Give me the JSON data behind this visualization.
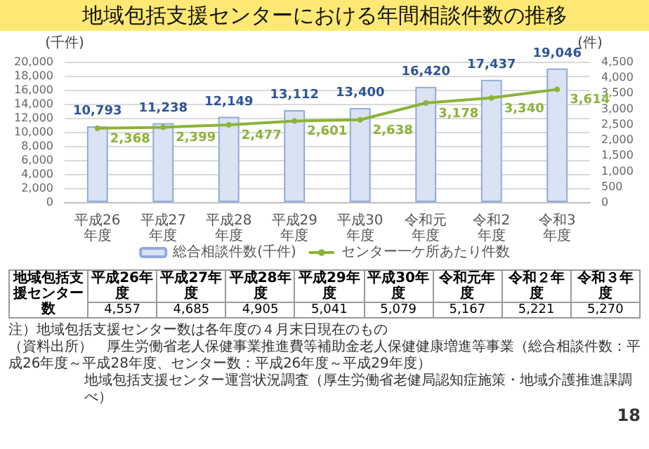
{
  "chart_data": [
    {
      "type": "bar",
      "title": "地域包括支援センターにおける年間相談件数の推移",
      "categories": [
        "平成26年度",
        "平成27年度",
        "平成28年度",
        "平成29年度",
        "平成30年度",
        "令和元年度",
        "令和2年度",
        "令和3年度"
      ],
      "series": [
        {
          "name": "総合相談件数(千件)",
          "type": "bar",
          "color": "#dae3f3",
          "values": [
            10793,
            11238,
            12149,
            13112,
            13400,
            16420,
            17437,
            19046
          ],
          "value_labels": [
            "10,793",
            "11,238",
            "12,149",
            "13,112",
            "13,400",
            "16,420",
            "17,437",
            "19,046"
          ]
        },
        {
          "name": "センター一ケ所あたり件数",
          "type": "line",
          "axis": "y2",
          "color": "#8cb33a",
          "marker": "circle",
          "values": [
            2368,
            2399,
            2477,
            2601,
            2638,
            3178,
            3340,
            3614
          ],
          "value_labels": [
            "2,368",
            "2,399",
            "2,477",
            "2,601",
            "2,638",
            "3,178",
            "3,340",
            "3,614"
          ]
        }
      ],
      "ylabel": "(千件)",
      "y2label": "(件)",
      "ylim": [
        0,
        20000
      ],
      "yticks": [
        0,
        {
          "value": 2000,
          "label": "2,000"
        },
        {
          "value": 4000,
          "label": "4,000"
        },
        {
          "value": 6000,
          "label": "6,000"
        },
        {
          "value": 8000,
          "label": "8,000"
        },
        {
          "value": 10000,
          "label": "10,000"
        },
        {
          "value": 12000,
          "label": "12,000"
        },
        {
          "value": 14000,
          "label": "14,000"
        },
        {
          "value": 16000,
          "label": "16,000"
        },
        {
          "value": 18000,
          "label": "18,000"
        },
        {
          "value": 20000,
          "label": "20,000"
        }
      ],
      "y2lim": [
        0,
        4500
      ],
      "y2ticks": [
        0,
        500,
        {
          "value": 1000,
          "label": "1,000"
        },
        {
          "value": 1500,
          "label": "1,500"
        },
        {
          "value": 2000,
          "label": "2,000"
        },
        {
          "value": 2500,
          "label": "2,500"
        },
        {
          "value": 3000,
          "label": "3,000"
        },
        {
          "value": 3500,
          "label": "3,500"
        },
        {
          "value": 4000,
          "label": "4,000"
        },
        {
          "value": 4500,
          "label": "4,500"
        }
      ],
      "grid": "y",
      "legend": "bottom"
    },
    {
      "type": "other",
      "title": "地域包括支援センター数",
      "categories": [
        "平成26年度",
        "平成27年度",
        "平成28年度",
        "平成29年度",
        "平成30年度",
        "令和元年度",
        "令和２年度",
        "令和３年度"
      ],
      "value_labels": [
        "4,557",
        "4,685",
        "4,905",
        "5,041",
        "5,079",
        "5,167",
        "5,221",
        "5,270"
      ],
      "annotations": [
        "注）地域包括支援センター数は各年度の４月末日現在のもの",
        "（資料出所）　厚生労働省老人保健事業推進費等補助金老人保健健康増進等事業（総合相談件数：平成26年度～平成28年度、センター数：平成26年度～平成29年度）",
        "地域包括支援センター運営状況調査（厚生労働省老健局認知症施策・地域介護推進課調べ）",
        "18"
      ]
    }
  ]
}
